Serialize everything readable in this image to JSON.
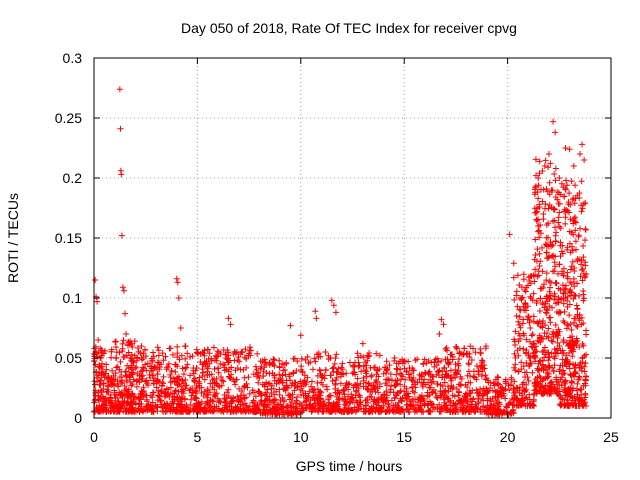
{
  "chart_data": {
    "type": "scatter",
    "title": "Day 050 of 2018, Rate Of TEC Index for receiver cpvg",
    "xlabel": "GPS time / hours",
    "ylabel": "ROTI / TECUs",
    "xlim": [
      0,
      25
    ],
    "ylim": [
      0,
      0.3
    ],
    "x_ticks": [
      0,
      5,
      10,
      15,
      20,
      25
    ],
    "x_tick_labels": [
      "0",
      "5",
      "10",
      "15",
      "20",
      "25"
    ],
    "y_ticks": [
      0,
      0.05,
      0.1,
      0.15,
      0.2,
      0.25,
      0.3
    ],
    "y_tick_labels": [
      "0",
      "0.05",
      "0.1",
      "0.15",
      "0.2",
      "0.25",
      "0.3"
    ],
    "grid": true,
    "marker": "+",
    "color": "#ff0000",
    "series": [
      {
        "name": "ROTI",
        "points": [
          [
            0.05,
            0.115
          ],
          [
            0.1,
            0.101
          ],
          [
            0.15,
            0.097
          ],
          [
            0.2,
            0.065
          ],
          [
            0.3,
            0.05
          ],
          [
            1.25,
            0.274
          ],
          [
            1.28,
            0.241
          ],
          [
            1.3,
            0.206
          ],
          [
            1.32,
            0.203
          ],
          [
            1.35,
            0.152
          ],
          [
            1.4,
            0.109
          ],
          [
            1.45,
            0.106
          ],
          [
            1.5,
            0.087
          ],
          [
            1.55,
            0.07
          ],
          [
            4.0,
            0.116
          ],
          [
            4.05,
            0.113
          ],
          [
            4.1,
            0.1
          ],
          [
            4.2,
            0.075
          ],
          [
            6.5,
            0.083
          ],
          [
            6.6,
            0.078
          ],
          [
            9.5,
            0.077
          ],
          [
            10.0,
            0.069
          ],
          [
            10.7,
            0.089
          ],
          [
            10.75,
            0.083
          ],
          [
            11.5,
            0.098
          ],
          [
            11.6,
            0.094
          ],
          [
            11.7,
            0.088
          ],
          [
            13.0,
            0.062
          ],
          [
            16.8,
            0.082
          ],
          [
            16.9,
            0.078
          ],
          [
            16.7,
            0.07
          ],
          [
            20.1,
            0.153
          ],
          [
            20.3,
            0.129
          ],
          [
            20.5,
            0.119
          ],
          [
            20.6,
            0.1
          ],
          [
            20.8,
            0.09
          ],
          [
            21.5,
            0.194
          ],
          [
            21.8,
            0.21
          ],
          [
            22.0,
            0.22
          ],
          [
            22.2,
            0.247
          ],
          [
            22.3,
            0.238
          ],
          [
            22.5,
            0.2
          ],
          [
            22.8,
            0.225
          ],
          [
            23.0,
            0.224
          ],
          [
            23.2,
            0.21
          ],
          [
            23.5,
            0.22
          ],
          [
            23.6,
            0.228
          ],
          [
            23.7,
            0.215
          ],
          [
            23.8,
            0.12
          ]
        ]
      }
    ],
    "density_profile": [
      {
        "from": 0,
        "to": 1,
        "low": 0.005,
        "high": 0.06,
        "count": 160
      },
      {
        "from": 1,
        "to": 2,
        "low": 0.005,
        "high": 0.065,
        "count": 170
      },
      {
        "from": 2,
        "to": 5,
        "low": 0.005,
        "high": 0.06,
        "count": 360
      },
      {
        "from": 5,
        "to": 8,
        "low": 0.005,
        "high": 0.06,
        "count": 330
      },
      {
        "from": 8,
        "to": 10,
        "low": 0.003,
        "high": 0.05,
        "count": 220
      },
      {
        "from": 10,
        "to": 14,
        "low": 0.005,
        "high": 0.055,
        "count": 420
      },
      {
        "from": 14,
        "to": 17,
        "low": 0.005,
        "high": 0.05,
        "count": 300
      },
      {
        "from": 17,
        "to": 19,
        "low": 0.005,
        "high": 0.06,
        "count": 230
      },
      {
        "from": 19,
        "to": 20.3,
        "low": 0.003,
        "high": 0.035,
        "count": 130
      },
      {
        "from": 20.3,
        "to": 21.3,
        "low": 0.01,
        "high": 0.12,
        "count": 170
      },
      {
        "from": 21.3,
        "to": 22.5,
        "low": 0.02,
        "high": 0.22,
        "count": 330
      },
      {
        "from": 22.5,
        "to": 23.8,
        "low": 0.01,
        "high": 0.2,
        "count": 360
      }
    ]
  }
}
